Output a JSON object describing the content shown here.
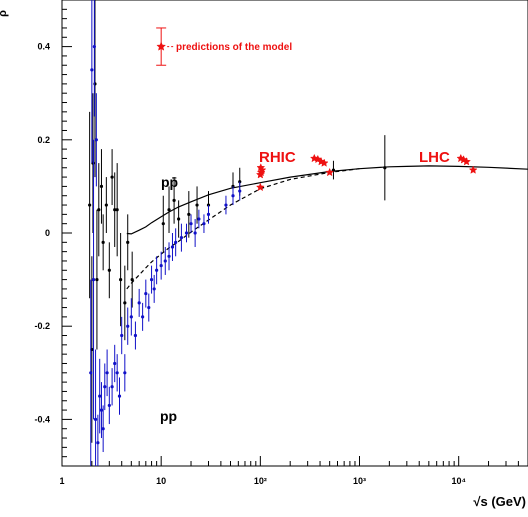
{
  "chart_data": {
    "type": "scatter",
    "x_scale": "log",
    "x_range": [
      1,
      50000
    ],
    "y_range": [
      -0.5,
      0.5
    ],
    "xlabel": "√s (GeV)",
    "ylabel": "ρ",
    "x_ticks": [
      {
        "v": 1,
        "label": "1"
      },
      {
        "v": 10,
        "label": "10"
      },
      {
        "v": 100,
        "label": "10²"
      },
      {
        "v": 1000,
        "label": "10³"
      },
      {
        "v": 10000,
        "label": "10⁴"
      }
    ],
    "y_ticks": [
      {
        "v": 0.4,
        "label": "0.4"
      },
      {
        "v": 0.2,
        "label": "0.2"
      },
      {
        "v": 0,
        "label": "0"
      },
      {
        "v": -0.2,
        "label": "-0.2"
      },
      {
        "v": -0.4,
        "label": "-0.4"
      }
    ],
    "annotations": {
      "pbar_p": "pp̄",
      "pp": "pp",
      "rhic": "RHIC",
      "lhc": "LHC",
      "legend": "predictions of the model"
    },
    "colors": {
      "pbar_p": "#000000",
      "pp": "#1010c8",
      "model": "#ee1111",
      "curve": "#000000"
    },
    "series": [
      {
        "name": "pp̄",
        "color": "#000000",
        "points": [
          {
            "x": 1.9,
            "y": 0.06,
            "e": 0.2
          },
          {
            "x": 2.0,
            "y": -0.25,
            "e": 0.2
          },
          {
            "x": 2.05,
            "y": 0.15,
            "e": 0.15
          },
          {
            "x": 2.15,
            "y": 0.32,
            "e": 0.2
          },
          {
            "x": 2.25,
            "y": -0.1,
            "e": 0.15
          },
          {
            "x": 2.35,
            "y": 0.05,
            "e": 0.1
          },
          {
            "x": 2.5,
            "y": 0.1,
            "e": 0.08
          },
          {
            "x": 2.6,
            "y": -0.02,
            "e": 0.06
          },
          {
            "x": 2.8,
            "y": 0.06,
            "e": 0.06
          },
          {
            "x": 3.0,
            "y": -0.08,
            "e": 0.06
          },
          {
            "x": 3.2,
            "y": 0.12,
            "e": 0.06
          },
          {
            "x": 3.4,
            "y": 0.05,
            "e": 0.08
          },
          {
            "x": 3.6,
            "y": 0.05,
            "e": 0.1
          },
          {
            "x": 3.9,
            "y": -0.1,
            "e": 0.1
          },
          {
            "x": 4.3,
            "y": -0.15,
            "e": 0.08
          },
          {
            "x": 4.6,
            "y": -0.02,
            "e": 0.06
          },
          {
            "x": 5.1,
            "y": -0.1,
            "e": 0.06
          },
          {
            "x": 10.5,
            "y": 0.02,
            "e": 0.06
          },
          {
            "x": 12,
            "y": 0.05,
            "e": 0.05
          },
          {
            "x": 13.5,
            "y": 0.07,
            "e": 0.05
          },
          {
            "x": 15,
            "y": 0.03,
            "e": 0.04
          },
          {
            "x": 19,
            "y": 0.04,
            "e": 0.05
          },
          {
            "x": 23,
            "y": 0.06,
            "e": 0.04
          },
          {
            "x": 30,
            "y": 0.06,
            "e": 0.03
          },
          {
            "x": 53,
            "y": 0.1,
            "e": 0.03
          },
          {
            "x": 62,
            "y": 0.11,
            "e": 0.03
          },
          {
            "x": 546,
            "y": 0.135,
            "e": 0.02
          },
          {
            "x": 1800,
            "y": 0.14,
            "e": 0.07
          }
        ]
      },
      {
        "name": "pp",
        "color": "#1010c8",
        "points": [
          {
            "x": 1.95,
            "y": -0.3,
            "e": 0.2
          },
          {
            "x": 2.0,
            "y": 0.35,
            "e": 0.2
          },
          {
            "x": 2.08,
            "y": -0.1,
            "e": 0.3
          },
          {
            "x": 2.12,
            "y": 0.4,
            "e": 0.15
          },
          {
            "x": 2.18,
            "y": -0.4,
            "e": 0.15
          },
          {
            "x": 2.22,
            "y": 0.2,
            "e": 0.1
          },
          {
            "x": 2.3,
            "y": -0.45,
            "e": 0.06
          },
          {
            "x": 2.4,
            "y": -0.35,
            "e": 0.08
          },
          {
            "x": 2.5,
            "y": -0.38,
            "e": 0.06
          },
          {
            "x": 2.6,
            "y": -0.42,
            "e": 0.05
          },
          {
            "x": 2.7,
            "y": -0.33,
            "e": 0.05
          },
          {
            "x": 2.85,
            "y": -0.3,
            "e": 0.05
          },
          {
            "x": 3.0,
            "y": -0.37,
            "e": 0.04
          },
          {
            "x": 3.2,
            "y": -0.33,
            "e": 0.04
          },
          {
            "x": 3.4,
            "y": -0.28,
            "e": 0.04
          },
          {
            "x": 3.6,
            "y": -0.3,
            "e": 0.04
          },
          {
            "x": 3.8,
            "y": -0.35,
            "e": 0.04
          },
          {
            "x": 4.0,
            "y": -0.22,
            "e": 0.04
          },
          {
            "x": 4.3,
            "y": -0.3,
            "e": 0.04
          },
          {
            "x": 4.6,
            "y": -0.2,
            "e": 0.04
          },
          {
            "x": 5.0,
            "y": -0.18,
            "e": 0.04
          },
          {
            "x": 5.5,
            "y": -0.22,
            "e": 0.03
          },
          {
            "x": 6.0,
            "y": -0.15,
            "e": 0.03
          },
          {
            "x": 6.5,
            "y": -0.18,
            "e": 0.03
          },
          {
            "x": 7.0,
            "y": -0.13,
            "e": 0.03
          },
          {
            "x": 7.5,
            "y": -0.16,
            "e": 0.03
          },
          {
            "x": 8.0,
            "y": -0.1,
            "e": 0.03
          },
          {
            "x": 8.5,
            "y": -0.12,
            "e": 0.03
          },
          {
            "x": 9.0,
            "y": -0.08,
            "e": 0.03
          },
          {
            "x": 10.0,
            "y": -0.07,
            "e": 0.03
          },
          {
            "x": 11,
            "y": -0.06,
            "e": 0.03
          },
          {
            "x": 12,
            "y": -0.05,
            "e": 0.03
          },
          {
            "x": 13,
            "y": -0.03,
            "e": 0.03
          },
          {
            "x": 14,
            "y": -0.02,
            "e": 0.03
          },
          {
            "x": 16,
            "y": -0.01,
            "e": 0.03
          },
          {
            "x": 18,
            "y": 0.0,
            "e": 0.02
          },
          {
            "x": 20,
            "y": 0.02,
            "e": 0.02
          },
          {
            "x": 22,
            "y": 0.0,
            "e": 0.03
          },
          {
            "x": 24,
            "y": 0.03,
            "e": 0.02
          },
          {
            "x": 27,
            "y": 0.02,
            "e": 0.02
          },
          {
            "x": 30,
            "y": 0.04,
            "e": 0.02
          },
          {
            "x": 45,
            "y": 0.06,
            "e": 0.02
          },
          {
            "x": 53,
            "y": 0.08,
            "e": 0.02
          },
          {
            "x": 62,
            "y": 0.09,
            "e": 0.02
          }
        ]
      }
    ],
    "model_predictions": [
      {
        "x": 100,
        "y": 0.098
      },
      {
        "x": 500,
        "y": 0.13
      },
      {
        "x": 14000,
        "y": 0.135
      },
      {
        "x": 100,
        "y": 0.125
      },
      {
        "x": 102,
        "y": 0.13
      },
      {
        "x": 104,
        "y": 0.135
      },
      {
        "x": 101,
        "y": 0.14
      },
      {
        "x": 350,
        "y": 0.16
      },
      {
        "x": 380,
        "y": 0.158
      },
      {
        "x": 410,
        "y": 0.153
      },
      {
        "x": 440,
        "y": 0.15
      },
      {
        "x": 10500,
        "y": 0.16
      },
      {
        "x": 11200,
        "y": 0.157
      },
      {
        "x": 12000,
        "y": 0.153
      }
    ],
    "legend_marker": {
      "x": 10,
      "y": 0.4,
      "e": 0.04
    },
    "curve_solid": [
      [
        4.5,
        -0.001
      ],
      [
        5,
        -0.002
      ],
      [
        6,
        0.006
      ],
      [
        7,
        0.013
      ],
      [
        8,
        0.022
      ],
      [
        10,
        0.035
      ],
      [
        12,
        0.045
      ],
      [
        15,
        0.056
      ],
      [
        20,
        0.067
      ],
      [
        30,
        0.082
      ],
      [
        50,
        0.096
      ],
      [
        100,
        0.108
      ],
      [
        200,
        0.12
      ],
      [
        500,
        0.132
      ],
      [
        1000,
        0.138
      ],
      [
        2000,
        0.142
      ],
      [
        3000,
        0.143
      ],
      [
        5000,
        0.144
      ],
      [
        10000,
        0.143
      ],
      [
        20000,
        0.141
      ],
      [
        50000,
        0.137
      ]
    ],
    "curve_dashed": [
      [
        4.5,
        -0.12
      ],
      [
        5,
        -0.108
      ],
      [
        6,
        -0.09
      ],
      [
        7,
        -0.075
      ],
      [
        8,
        -0.062
      ],
      [
        10,
        -0.045
      ],
      [
        12,
        -0.032
      ],
      [
        15,
        -0.018
      ],
      [
        20,
        0.002
      ],
      [
        30,
        0.028
      ],
      [
        50,
        0.06
      ],
      [
        100,
        0.095
      ],
      [
        200,
        0.115
      ],
      [
        500,
        0.13
      ],
      [
        1000,
        0.138
      ]
    ]
  }
}
